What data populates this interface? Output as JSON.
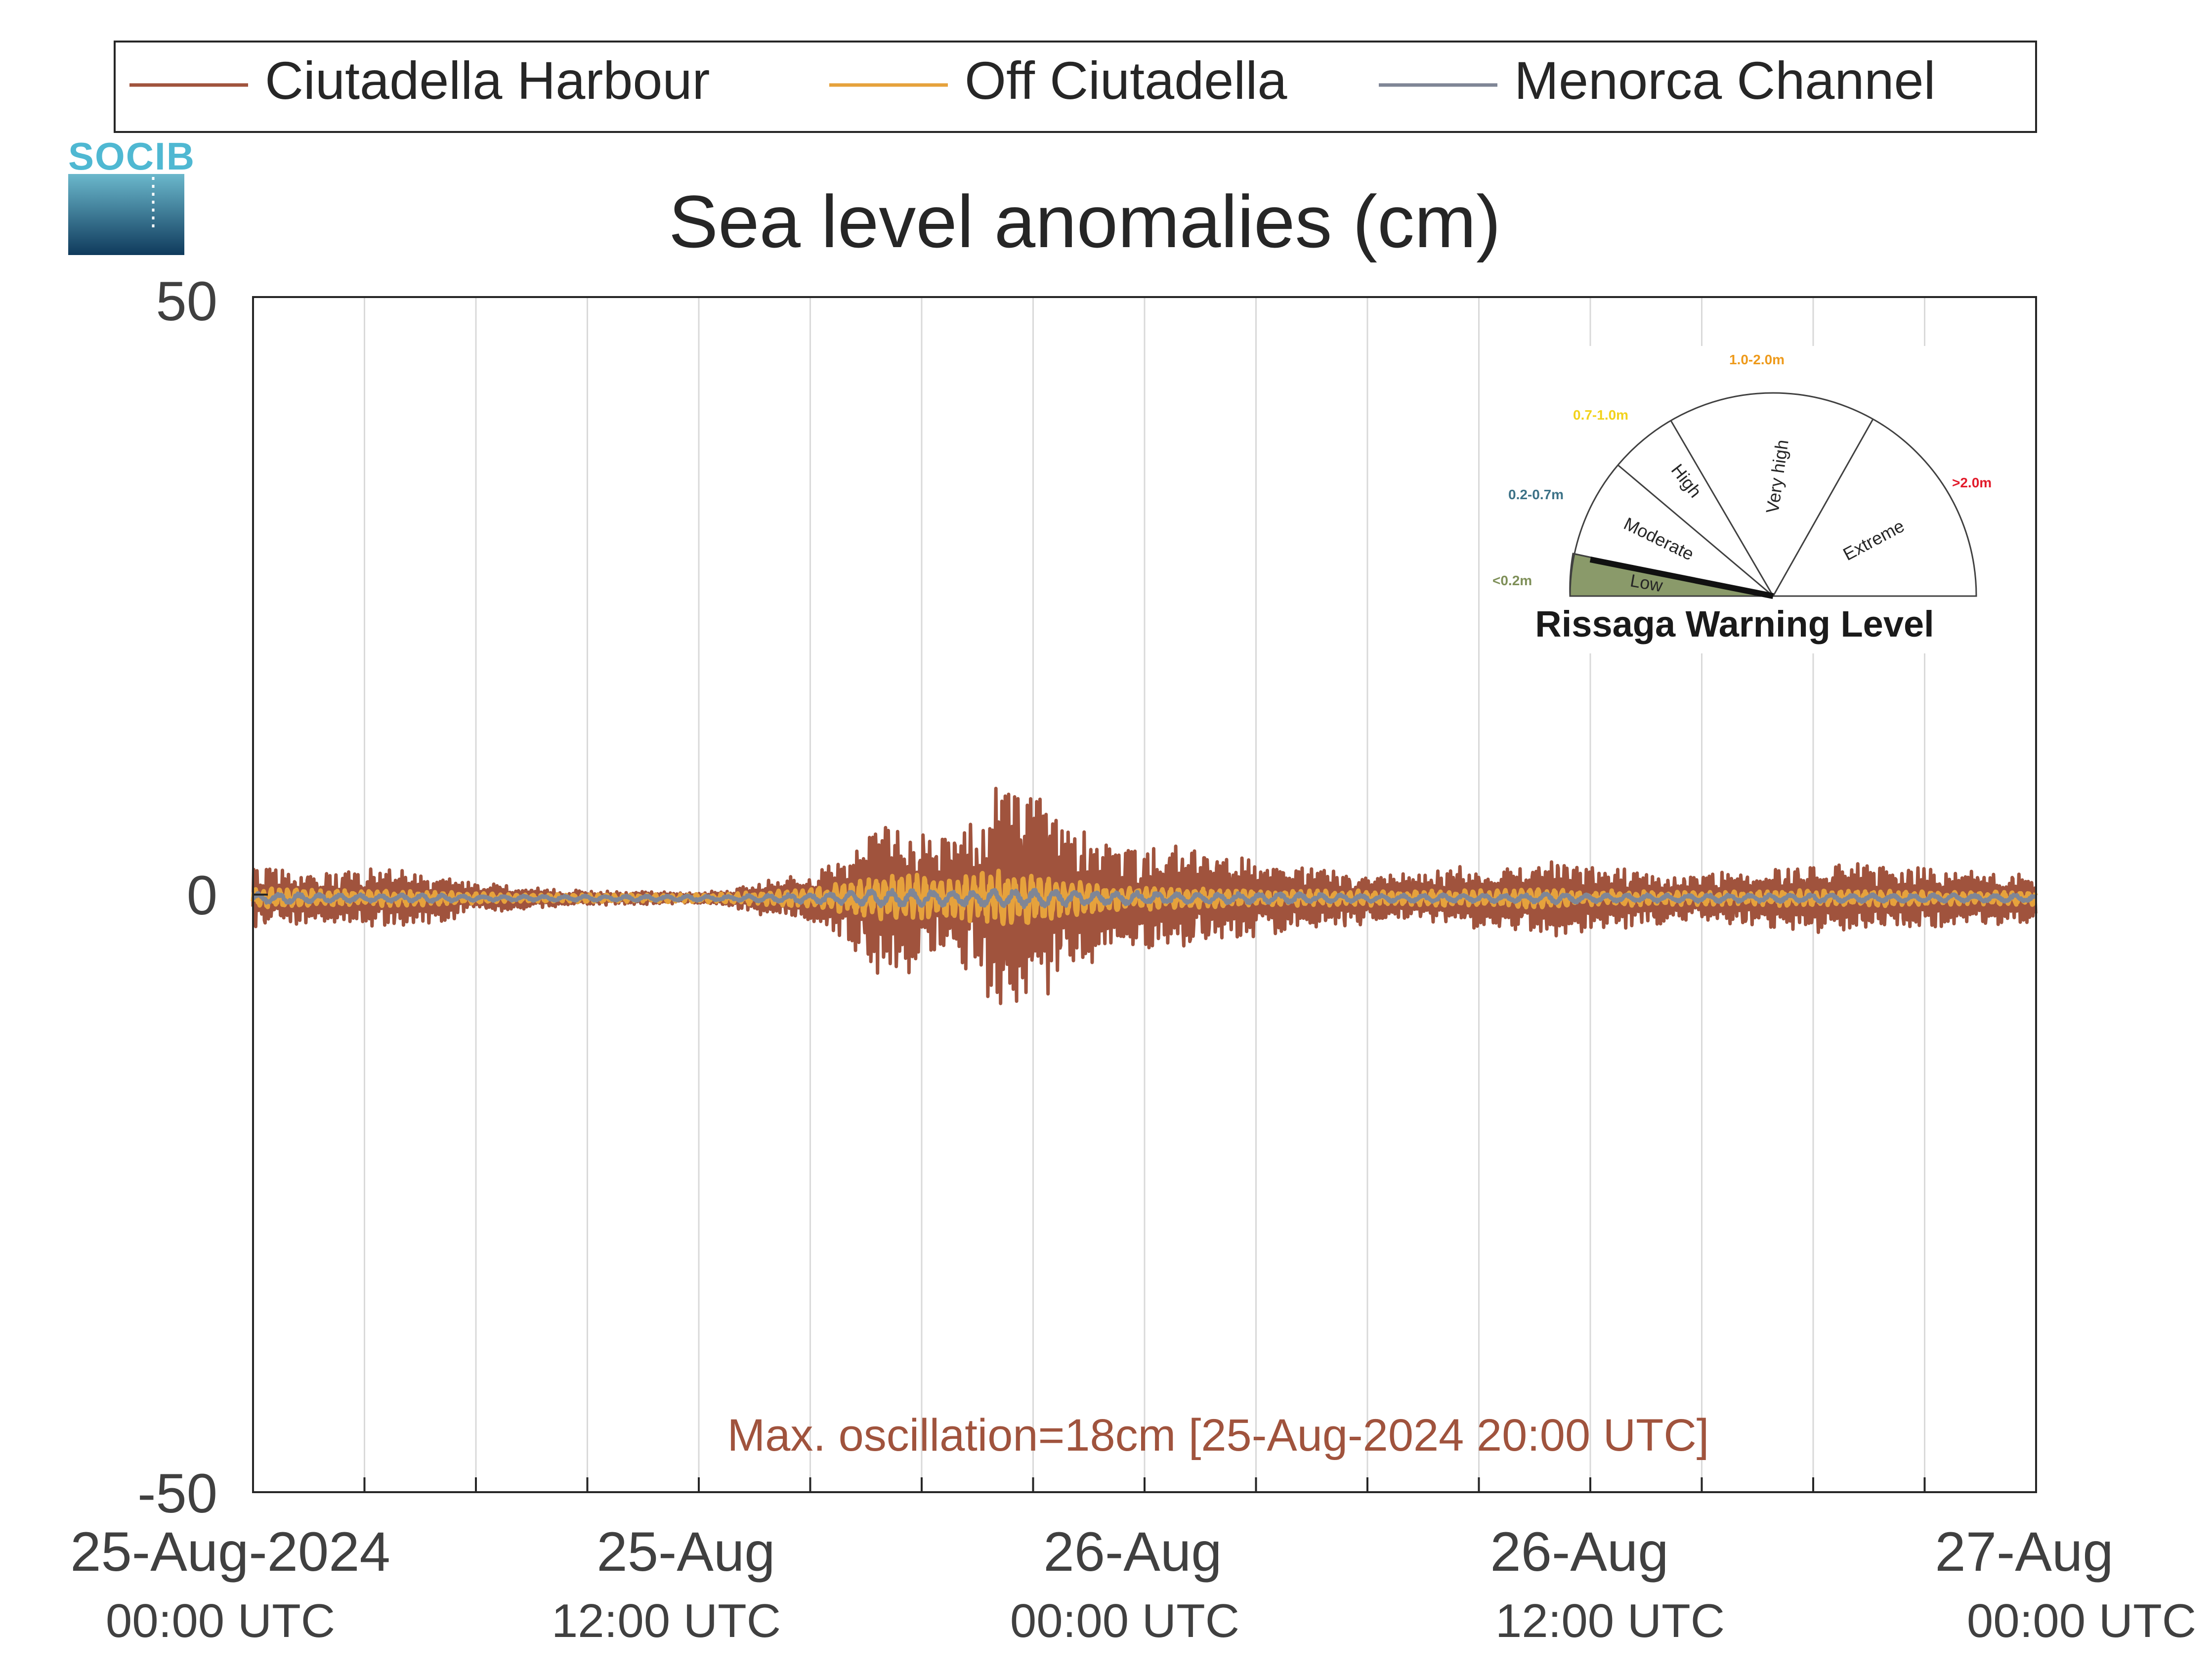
{
  "logo": {
    "text": "SOCIB"
  },
  "legend": {
    "position": "top",
    "entries": [
      {
        "name": "Ciutadella Harbour",
        "color": "#A0533D"
      },
      {
        "name": "Off Ciutadella",
        "color": "#E6A23C"
      },
      {
        "name": "Menorca Channel",
        "color": "#7F8696"
      }
    ]
  },
  "annotation": {
    "text": "Max. oscillation=18cm [25-Aug-2024 20:00 UTC]",
    "color": "#A0533D"
  },
  "gauge": {
    "title": "Rissaga Warning Level",
    "current_level": "Low",
    "levels": [
      {
        "name": "Low",
        "range": "<0.2m",
        "range_color": "#7E8F58",
        "fill": "#8A9A6A"
      },
      {
        "name": "Moderate",
        "range": "0.2-0.7m",
        "range_color": "#3C7287"
      },
      {
        "name": "High",
        "range": "0.7-1.0m",
        "range_color": "#F2D21B"
      },
      {
        "name": "Very high",
        "range": "1.0-2.0m",
        "range_color": "#EE9A1B"
      },
      {
        "name": "Extreme",
        "range": ">2.0m",
        "range_color": "#E21B2B"
      }
    ]
  },
  "chart_data": {
    "type": "line",
    "title": "Sea level anomalies (cm)",
    "xlabel": "",
    "ylabel": "",
    "ylim": [
      -50,
      50
    ],
    "yticks": [
      "50",
      "0",
      "-50"
    ],
    "xlim": [
      "2024-08-25T00:00",
      "2024-08-27T00:00"
    ],
    "xticks": [
      {
        "date": "25-Aug-2024",
        "time": "00:00 UTC"
      },
      {
        "date": "25-Aug",
        "time": "12:00 UTC"
      },
      {
        "date": "26-Aug",
        "time": "00:00 UTC"
      },
      {
        "date": "26-Aug",
        "time": "12:00 UTC"
      },
      {
        "date": "27-Aug",
        "time": "00:00 UTC"
      }
    ],
    "grid": "vertical every 3 hours",
    "series": [
      {
        "name": "Ciutadella Harbour",
        "x_hours": [
          0,
          1,
          2,
          3,
          4,
          5,
          6,
          7,
          8,
          9,
          10,
          11,
          12,
          13,
          14,
          15,
          16,
          17,
          18,
          19,
          20,
          21,
          22,
          23,
          24,
          25,
          26,
          27,
          28,
          29,
          30,
          31,
          32,
          33,
          34,
          35,
          36,
          37,
          38,
          39,
          40,
          41,
          42,
          43,
          44,
          45,
          46,
          47,
          48
        ],
        "amplitude_cm": [
          2.5,
          2.2,
          2.0,
          2.2,
          2.4,
          1.9,
          1.2,
          1.0,
          0.7,
          0.6,
          0.5,
          0.5,
          0.4,
          0.8,
          1.5,
          2.0,
          3.5,
          6.5,
          5.5,
          5.0,
          8.5,
          9.0,
          6.0,
          4.2,
          3.8,
          4.5,
          3.5,
          3.0,
          2.5,
          2.4,
          2.2,
          2.0,
          2.3,
          2.6,
          2.8,
          3.2,
          2.6,
          2.4,
          2.1,
          2.0,
          2.2,
          2.4,
          2.6,
          2.8,
          2.6,
          2.4,
          2.2,
          2.1,
          2.0
        ]
      },
      {
        "name": "Off Ciutadella",
        "x_hours": [
          0,
          1,
          2,
          3,
          4,
          5,
          6,
          7,
          8,
          9,
          10,
          11,
          12,
          13,
          14,
          15,
          16,
          17,
          18,
          19,
          20,
          21,
          22,
          23,
          24,
          25,
          26,
          27,
          28,
          29,
          30,
          31,
          32,
          33,
          34,
          35,
          36,
          37,
          38,
          39,
          40,
          41,
          42,
          43,
          44,
          45,
          46,
          47,
          48
        ],
        "amplitude_cm": [
          0.8,
          0.7,
          0.6,
          0.6,
          0.6,
          0.5,
          0.4,
          0.3,
          0.3,
          0.3,
          0.3,
          0.3,
          0.3,
          0.4,
          0.6,
          0.8,
          1.2,
          2.0,
          1.8,
          1.6,
          2.2,
          2.0,
          1.5,
          1.0,
          0.9,
          0.8,
          0.7,
          0.6,
          0.6,
          0.6,
          0.6,
          0.5,
          0.6,
          0.6,
          0.7,
          0.7,
          0.6,
          0.6,
          0.5,
          0.5,
          0.5,
          0.6,
          0.6,
          0.6,
          0.6,
          0.5,
          0.5,
          0.5,
          0.5
        ]
      },
      {
        "name": "Menorca Channel",
        "x_hours": [
          0,
          1,
          2,
          3,
          4,
          5,
          6,
          7,
          8,
          9,
          10,
          11,
          12,
          13,
          14,
          15,
          16,
          17,
          18,
          19,
          20,
          21,
          22,
          23,
          24,
          25,
          26,
          27,
          28,
          29,
          30,
          31,
          32,
          33,
          34,
          35,
          36,
          37,
          38,
          39,
          40,
          41,
          42,
          43,
          44,
          45,
          46,
          47,
          48
        ],
        "amplitude_cm": [
          0.4,
          0.4,
          0.3,
          0.3,
          0.3,
          0.3,
          0.2,
          0.2,
          0.2,
          0.2,
          0.2,
          0.2,
          0.2,
          0.2,
          0.3,
          0.4,
          0.5,
          0.7,
          0.6,
          0.6,
          0.7,
          0.7,
          0.6,
          0.5,
          0.5,
          0.4,
          0.4,
          0.4,
          0.4,
          0.3,
          0.3,
          0.3,
          0.3,
          0.3,
          0.3,
          0.4,
          0.3,
          0.3,
          0.3,
          0.3,
          0.3,
          0.3,
          0.3,
          0.3,
          0.3,
          0.3,
          0.3,
          0.3,
          0.3
        ]
      }
    ]
  }
}
